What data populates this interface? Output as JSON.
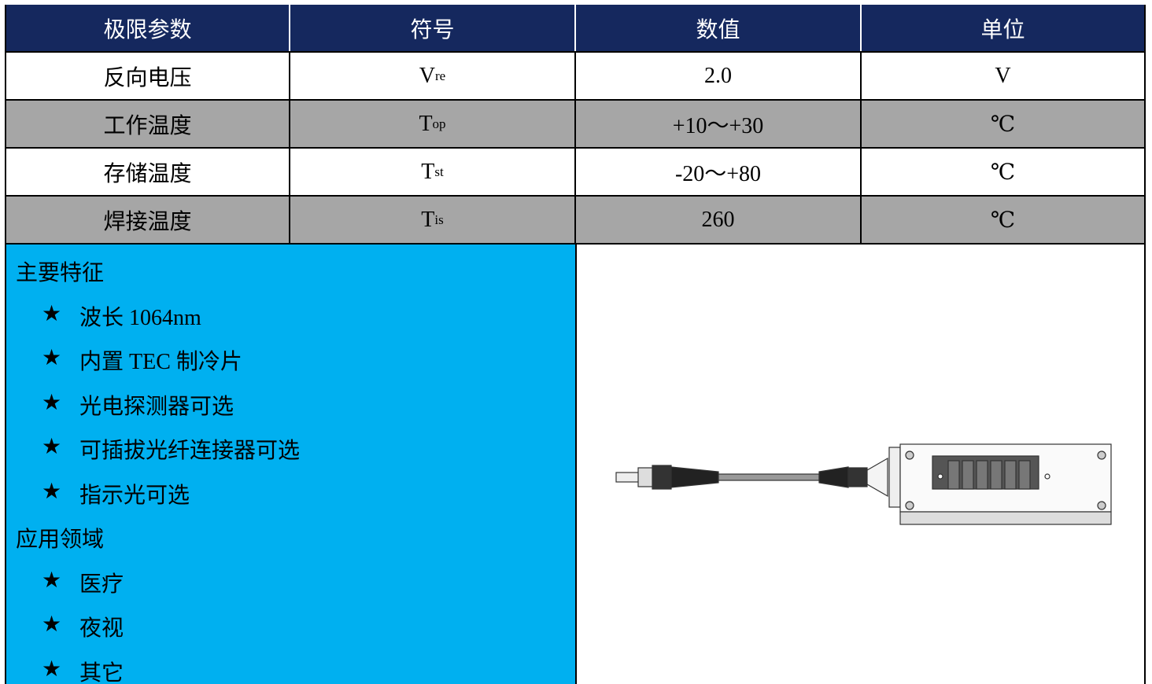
{
  "table": {
    "header": [
      "极限参数",
      "符号",
      "数值",
      "单位"
    ],
    "rows": [
      {
        "param": "反向电压",
        "symbol": {
          "main": "V",
          "sub": "re"
        },
        "value": "2.0",
        "unit": "V"
      },
      {
        "param": "工作温度",
        "symbol": {
          "main": "T",
          "sub": "op"
        },
        "value": "+10～+30",
        "unit": "℃"
      },
      {
        "param": "存储温度",
        "symbol": {
          "main": "T",
          "sub": "st"
        },
        "value": "-20～+80",
        "unit": "℃"
      },
      {
        "param": "焊接温度",
        "symbol": {
          "main": "T",
          "sub": "is"
        },
        "value": "260",
        "unit": "℃"
      }
    ]
  },
  "bullet": "★",
  "features": {
    "title": "主要特征",
    "items": [
      "波长 1064nm",
      "内置 TEC 制冷片",
      "光电探测器可选",
      "可插拔光纤连接器可选",
      "指示光可选"
    ]
  },
  "applications": {
    "title": "应用领域",
    "items": [
      "医疗",
      "夜视",
      "其它"
    ]
  }
}
